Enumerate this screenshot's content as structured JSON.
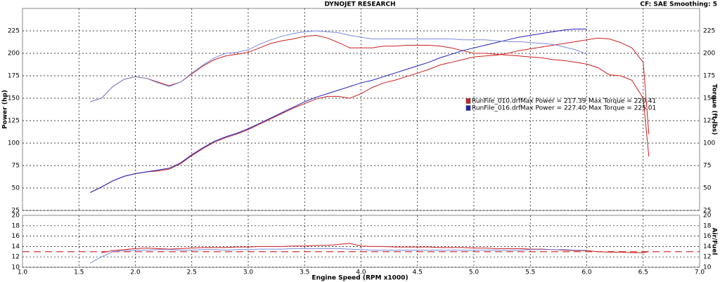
{
  "chart_data": [
    {
      "type": "line",
      "title": "DYNOJET RESEARCH",
      "subtitle": "CF: SAE  Smoothing: 5",
      "ylabel": "Power (hp)",
      "y2label": "Torque (ft-lbs)",
      "ylim": [
        25,
        250
      ],
      "yticks": [
        25,
        50,
        75,
        100,
        125,
        150,
        175,
        200,
        225
      ],
      "y2lim": [
        25,
        250
      ],
      "y2ticks": [
        25,
        50,
        75,
        100,
        125,
        150,
        175,
        200,
        225
      ],
      "grid": true,
      "annotations": [
        "Max Power = 217.39",
        "Max Torque = 220.41",
        "Max Power = 227.40",
        "Max Torque = 225.01"
      ],
      "series": [
        {
          "name": "RunFile_010.drf",
          "color": "#cc1f1f",
          "x": [
            1.6,
            1.7,
            1.8,
            1.9,
            2.0,
            2.1,
            2.2,
            2.3,
            2.4,
            2.5,
            2.6,
            2.7,
            2.8,
            2.9,
            3.0,
            3.1,
            3.2,
            3.3,
            3.4,
            3.5,
            3.6,
            3.7,
            3.8,
            3.9,
            4.0,
            4.1,
            4.2,
            4.3,
            4.4,
            4.5,
            4.6,
            4.7,
            4.8,
            4.9,
            5.0,
            5.1,
            5.2,
            5.3,
            5.4,
            5.5,
            5.6,
            5.7,
            5.8,
            5.9,
            6.0,
            6.1,
            6.2,
            6.3,
            6.4,
            6.5,
            6.55
          ],
          "values": [
            45,
            51,
            58,
            63,
            66,
            68,
            69,
            71,
            77,
            86,
            94,
            101,
            106,
            110,
            115,
            121,
            127,
            133,
            139,
            144,
            149,
            152,
            152,
            150,
            155,
            162,
            167,
            170,
            174,
            178,
            182,
            187,
            190,
            193,
            196,
            197,
            198,
            200,
            203,
            205,
            207,
            209,
            211,
            213,
            215,
            217,
            216,
            212,
            206,
            190,
            110
          ]
        },
        {
          "color": "#cc1f1f",
          "axis": "y2",
          "x": [
            1.6,
            1.7,
            1.8,
            1.9,
            2.0,
            2.1,
            2.2,
            2.3,
            2.4,
            2.5,
            2.6,
            2.7,
            2.8,
            2.9,
            3.0,
            3.1,
            3.2,
            3.3,
            3.4,
            3.5,
            3.6,
            3.7,
            3.8,
            3.9,
            4.0,
            4.1,
            4.2,
            4.3,
            4.4,
            4.5,
            4.6,
            4.7,
            4.8,
            4.9,
            5.0,
            5.1,
            5.2,
            5.3,
            5.4,
            5.5,
            5.6,
            5.7,
            5.8,
            5.9,
            6.0,
            6.1,
            6.2,
            6.3,
            6.4,
            6.5,
            6.55
          ],
          "values": [
            146,
            150,
            163,
            171,
            174,
            172,
            168,
            164,
            168,
            177,
            186,
            193,
            197,
            199,
            201,
            206,
            211,
            214,
            216,
            219,
            220,
            217,
            212,
            206,
            206,
            206,
            208,
            208,
            209,
            209,
            209,
            208,
            206,
            203,
            200,
            200,
            199,
            198,
            197,
            196,
            195,
            193,
            192,
            190,
            188,
            184,
            176,
            175,
            170,
            150,
            85
          ]
        },
        {
          "name": "RunFile_016.drf",
          "color": "#1f1fbf",
          "x": [
            1.6,
            1.7,
            1.8,
            1.9,
            2.0,
            2.1,
            2.2,
            2.3,
            2.4,
            2.5,
            2.6,
            2.7,
            2.8,
            2.9,
            3.0,
            3.1,
            3.2,
            3.3,
            3.4,
            3.5,
            3.6,
            3.7,
            3.8,
            3.9,
            4.0,
            4.1,
            4.2,
            4.3,
            4.4,
            4.5,
            4.6,
            4.7,
            4.8,
            4.9,
            5.0,
            5.1,
            5.2,
            5.3,
            5.4,
            5.5,
            5.6,
            5.7,
            5.8,
            5.9,
            6.0
          ],
          "values": [
            45,
            51,
            58,
            63,
            66,
            68,
            70,
            72,
            78,
            87,
            95,
            102,
            107,
            111,
            116,
            122,
            128,
            134,
            140,
            146,
            151,
            155,
            159,
            163,
            167,
            170,
            174,
            178,
            182,
            186,
            190,
            195,
            199,
            203,
            206,
            209,
            212,
            215,
            218,
            220,
            222,
            224,
            226,
            227,
            227
          ]
        },
        {
          "color": "#7a8ae0",
          "axis": "y2",
          "x": [
            1.6,
            1.7,
            1.8,
            1.9,
            2.0,
            2.1,
            2.2,
            2.3,
            2.4,
            2.5,
            2.6,
            2.7,
            2.8,
            2.9,
            3.0,
            3.1,
            3.2,
            3.3,
            3.4,
            3.5,
            3.6,
            3.7,
            3.8,
            3.9,
            4.0,
            4.1,
            4.2,
            4.3,
            4.4,
            4.5,
            4.6,
            4.7,
            4.8,
            4.9,
            5.0,
            5.1,
            5.2,
            5.3,
            5.4,
            5.5,
            5.6,
            5.7,
            5.8,
            5.9,
            6.0
          ],
          "values": [
            146,
            150,
            163,
            171,
            174,
            172,
            167,
            163,
            168,
            178,
            187,
            195,
            200,
            201,
            204,
            210,
            215,
            219,
            222,
            224,
            225,
            224,
            223,
            220,
            218,
            216,
            216,
            216,
            216,
            216,
            216,
            216,
            216,
            215,
            215,
            215,
            214,
            213,
            213,
            212,
            211,
            210,
            207,
            204,
            199
          ]
        }
      ]
    },
    {
      "type": "line",
      "xlabel": "Engine Speed (RPM x1000)",
      "ylabel": "Air/Fuel",
      "xlim": [
        1.0,
        7.0
      ],
      "xticks": [
        {
          "value": 1.0,
          "label": "1.0"
        },
        1.5,
        {
          "value": 2.0,
          "label": "2.0"
        },
        2.5,
        {
          "value": 3.0,
          "label": "3.0"
        },
        3.5,
        {
          "value": 4.0,
          "label": "4.0"
        },
        4.5,
        {
          "value": 5.0,
          "label": "5.0"
        },
        5.5,
        {
          "value": 6.0,
          "label": "6.0"
        },
        6.5,
        {
          "value": 7.0,
          "label": "7.0"
        }
      ],
      "ylim": [
        10,
        20
      ],
      "yticks": [
        10,
        12,
        14,
        16,
        18,
        20
      ],
      "grid": true,
      "reference_line": 13.0,
      "reference_color": "#cc1f1f",
      "series": [
        {
          "color": "#cc1f1f",
          "x": [
            1.6,
            1.7,
            1.8,
            1.9,
            2.0,
            2.1,
            2.2,
            2.3,
            2.4,
            2.5,
            2.6,
            2.7,
            2.8,
            2.9,
            3.0,
            3.1,
            3.2,
            3.3,
            3.4,
            3.5,
            3.6,
            3.7,
            3.8,
            3.9,
            4.0,
            4.1,
            4.2,
            4.3,
            4.4,
            4.5,
            4.6,
            4.7,
            4.8,
            4.9,
            5.0,
            5.1,
            5.2,
            5.3,
            5.4,
            5.5,
            5.6,
            5.7,
            5.8,
            5.9,
            6.0,
            6.1,
            6.2,
            6.3,
            6.4,
            6.5,
            6.55
          ],
          "values": [
            null,
            12.8,
            13.2,
            13.4,
            13.6,
            13.7,
            13.6,
            13.5,
            13.6,
            13.7,
            13.8,
            13.8,
            13.8,
            13.9,
            13.9,
            14.0,
            14.0,
            14.0,
            14.1,
            14.1,
            14.2,
            14.2,
            14.4,
            14.6,
            14.1,
            14.0,
            14.0,
            13.9,
            13.9,
            13.9,
            13.9,
            13.8,
            13.8,
            13.8,
            13.7,
            13.7,
            13.6,
            13.6,
            13.6,
            13.5,
            13.5,
            13.4,
            13.3,
            13.2,
            13.2,
            13.0,
            12.9,
            12.9,
            12.8,
            12.8,
            13.0
          ]
        },
        {
          "color": "#7a8ae0",
          "x": [
            1.6,
            1.7,
            1.8,
            1.9,
            2.0,
            2.1,
            2.2,
            2.3,
            2.4,
            2.5,
            2.6,
            2.7,
            2.8,
            2.9,
            3.0,
            3.1,
            3.2,
            3.3,
            3.4,
            3.5,
            3.6,
            3.7,
            3.8,
            3.9,
            4.0,
            4.1,
            4.2,
            4.3,
            4.4,
            4.5,
            4.6,
            4.7,
            4.8,
            4.9,
            5.0,
            5.1,
            5.2,
            5.3,
            5.4,
            5.5,
            5.6,
            5.7,
            5.8,
            5.9,
            6.0
          ],
          "values": [
            10.8,
            12.0,
            13.0,
            13.2,
            13.3,
            13.3,
            13.4,
            13.4,
            13.3,
            13.3,
            13.4,
            13.4,
            13.3,
            13.4,
            13.4,
            13.5,
            13.5,
            13.5,
            13.6,
            13.6,
            13.6,
            13.6,
            13.6,
            13.5,
            13.4,
            13.3,
            13.3,
            13.3,
            13.3,
            13.3,
            13.3,
            13.3,
            13.3,
            13.3,
            13.3,
            13.3,
            13.3,
            13.3,
            13.3,
            13.4,
            13.4,
            13.4,
            13.4,
            13.3,
            13.3
          ]
        }
      ]
    }
  ]
}
